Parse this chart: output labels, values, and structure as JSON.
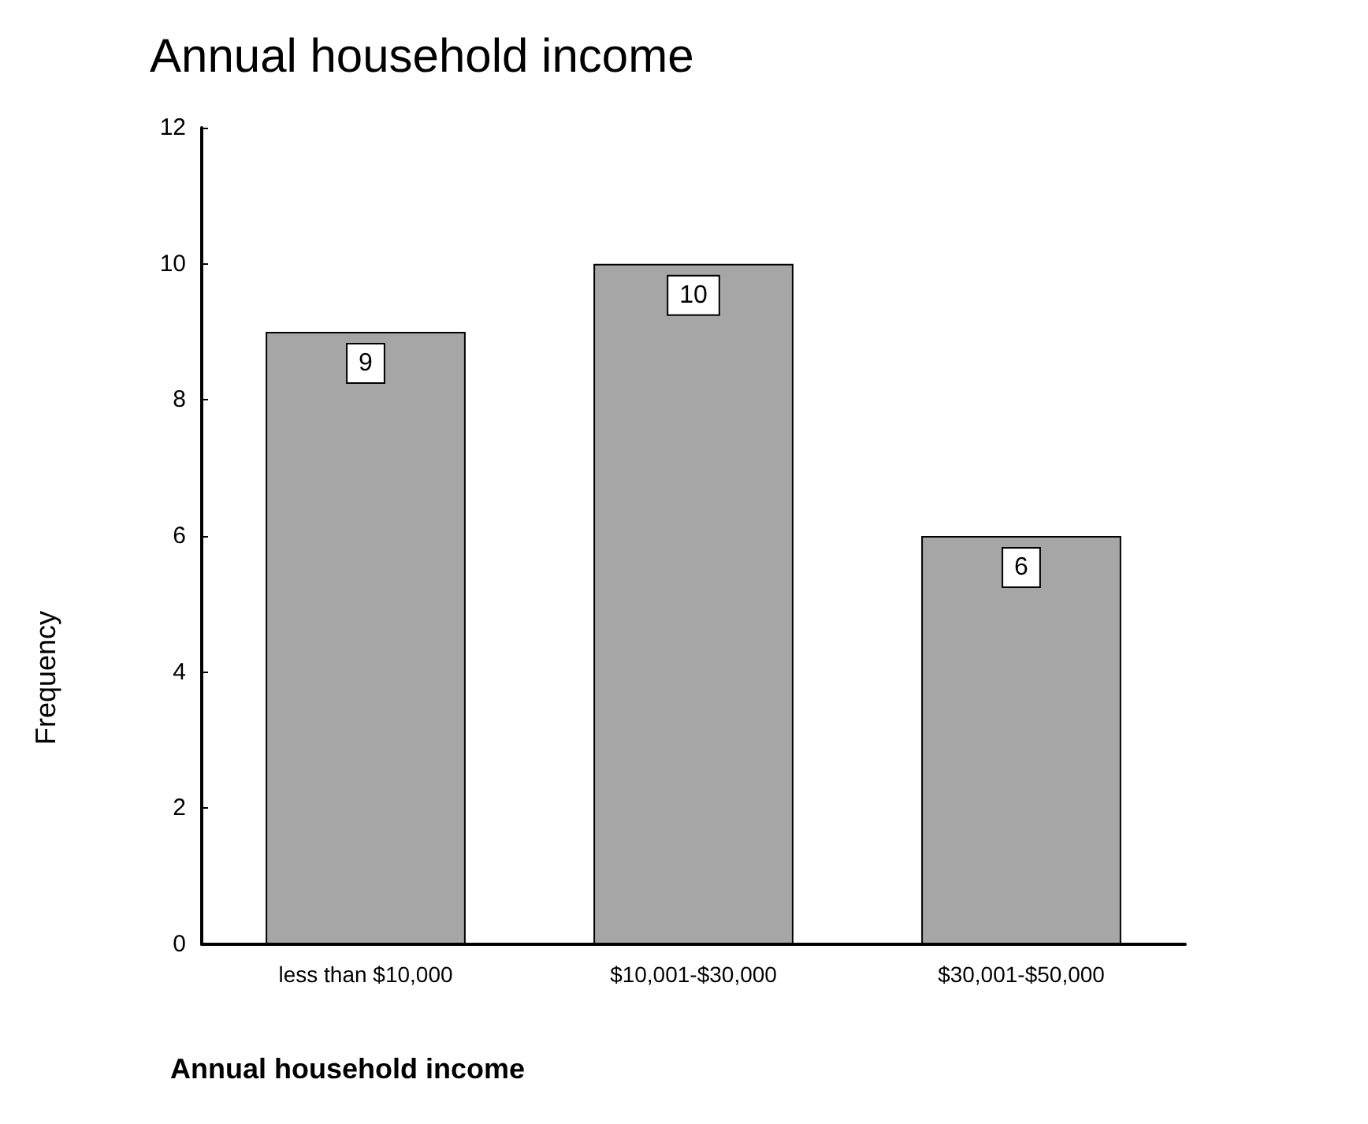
{
  "chart_data": {
    "type": "bar",
    "title": "Annual household income",
    "xlabel": "Annual household income",
    "ylabel": "Frequency",
    "categories": [
      "less than $10,000",
      "$10,001-$30,000",
      "$30,001-$50,000"
    ],
    "values": [
      9,
      10,
      6
    ],
    "color": "#a6a6a6",
    "ylim": [
      0,
      12
    ],
    "yticks": [
      0,
      2,
      4,
      6,
      8,
      10,
      12
    ],
    "grid": false,
    "data_labels": true
  }
}
